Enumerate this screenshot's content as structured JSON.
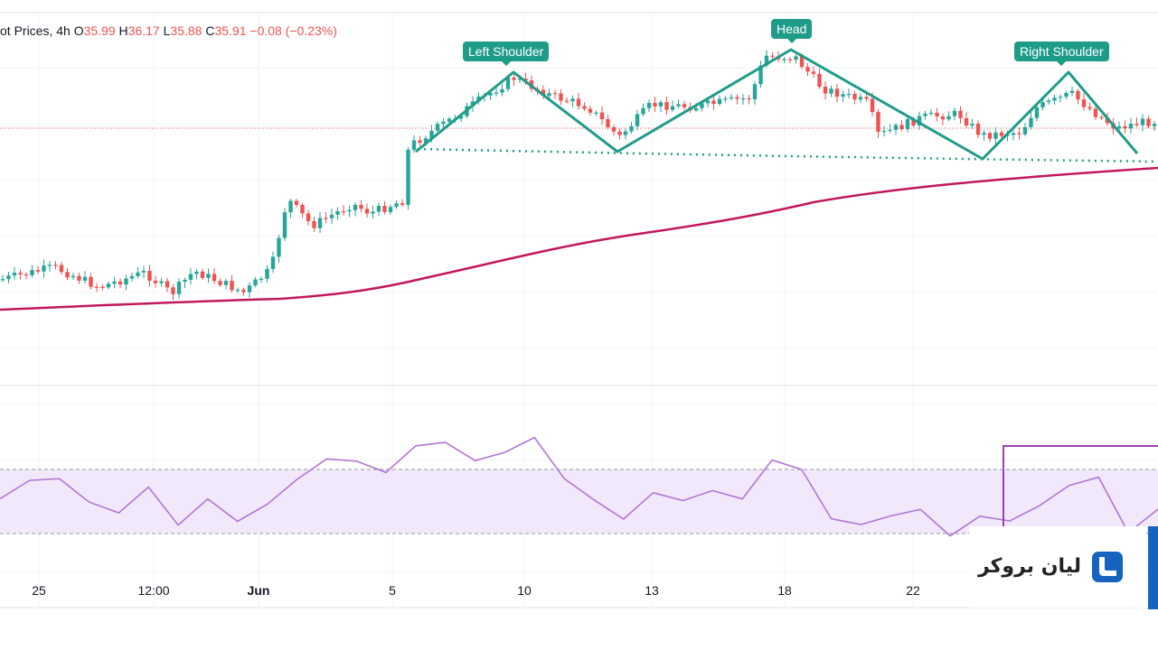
{
  "legend": {
    "symbol": "ot Prices, 4h",
    "open_label": "O",
    "open": "35.99",
    "high_label": "H",
    "high": "36.17",
    "low_label": "L",
    "low": "35.88",
    "close_label": "C",
    "close": "35.91",
    "change": "−0.08 (−0.23%)"
  },
  "annotations": {
    "left_shoulder": "Left Shoulder",
    "head": "Head",
    "right_shoulder": "Right Shoulder"
  },
  "x_axis": {
    "labels": [
      "25",
      "12:00",
      "Jun",
      "5",
      "10",
      "13",
      "18",
      "22"
    ],
    "bold_label": "Jun"
  },
  "brand": {
    "name": "لیان بروکر",
    "logo_icon": "broker-logo-icon",
    "accent": "#1565c0"
  },
  "colors": {
    "up": "#26a69a",
    "down": "#ef5350",
    "ma": "#c2185b",
    "pattern": "#1f9c88",
    "rsi": "#b175d6",
    "rsi_band": "#f1e9fb",
    "box": "#9c3fb8"
  },
  "chart_data": [
    {
      "type": "candlestick",
      "title": "",
      "timeframe": "4h",
      "series": [
        {
          "name": "price",
          "close_trend": [
            34.6,
            34.4,
            34.5,
            35.3,
            35.4,
            36.6,
            36.9,
            36.3,
            36.6,
            37.1,
            36.3,
            36.7,
            36.2
          ]
        },
        {
          "name": "moving average",
          "trend": [
            34.1,
            34.2,
            34.3,
            34.6,
            35.0,
            35.3,
            35.6,
            35.8
          ]
        }
      ],
      "pattern": {
        "name": "head and shoulders",
        "points": [
          "Left Shoulder",
          "Head",
          "Right Shoulder"
        ],
        "neckline": "dotted"
      }
    },
    {
      "type": "line",
      "title": "",
      "series": [
        {
          "values": [
            55,
            60,
            62,
            52,
            40,
            56,
            38,
            54,
            40,
            48,
            64,
            78,
            72,
            70,
            82,
            84,
            78,
            82,
            86,
            62,
            52,
            36,
            54,
            50,
            60,
            52,
            76,
            72,
            38,
            34,
            38,
            42,
            26,
            40,
            36,
            48,
            56,
            63,
            34,
            44
          ]
        }
      ],
      "band": [
        30,
        70
      ]
    }
  ]
}
